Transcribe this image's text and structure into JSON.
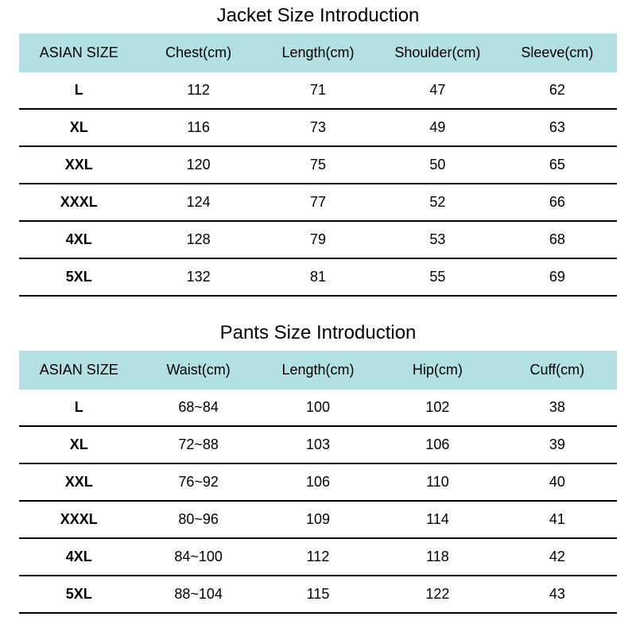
{
  "jacket": {
    "title": "Jacket Size Introduction",
    "columns": [
      "ASIAN SIZE",
      "Chest(cm)",
      "Length(cm)",
      "Shoulder(cm)",
      "Sleeve(cm)"
    ],
    "rows": [
      [
        "L",
        "112",
        "71",
        "47",
        "62"
      ],
      [
        "XL",
        "116",
        "73",
        "49",
        "63"
      ],
      [
        "XXL",
        "120",
        "75",
        "50",
        "65"
      ],
      [
        "XXXL",
        "124",
        "77",
        "52",
        "66"
      ],
      [
        "4XL",
        "128",
        "79",
        "53",
        "68"
      ],
      [
        "5XL",
        "132",
        "81",
        "55",
        "69"
      ]
    ]
  },
  "pants": {
    "title": "Pants Size Introduction",
    "columns": [
      "ASIAN SIZE",
      "Waist(cm)",
      "Length(cm)",
      "Hip(cm)",
      "Cuff(cm)"
    ],
    "rows": [
      [
        "L",
        "68~84",
        "100",
        "102",
        "38"
      ],
      [
        "XL",
        "72~88",
        "103",
        "106",
        "39"
      ],
      [
        "XXL",
        "76~92",
        "106",
        "110",
        "40"
      ],
      [
        "XXXL",
        "80~96",
        "109",
        "114",
        "41"
      ],
      [
        "4XL",
        "84~100",
        "112",
        "118",
        "42"
      ],
      [
        "5XL",
        "88~104",
        "115",
        "122",
        "43"
      ]
    ]
  },
  "style": {
    "header_bg": "#b3e0e2",
    "border_color": "#000000",
    "title_fontsize": 24,
    "cell_fontsize": 18
  }
}
